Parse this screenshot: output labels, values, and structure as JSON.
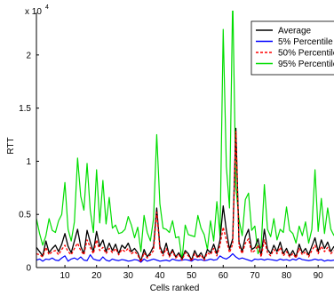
{
  "chart_data": {
    "type": "line",
    "xlabel": "Cells ranked",
    "ylabel": "RTT",
    "y_multiplier_label": "x 10",
    "y_multiplier_exponent": "4",
    "xlim": [
      1,
      95
    ],
    "ylim": [
      0,
      24000
    ],
    "xticks": [
      10,
      20,
      30,
      40,
      50,
      60,
      70,
      80,
      90
    ],
    "yticks": [
      0,
      5000,
      10000,
      15000,
      20000
    ],
    "ytick_labels": [
      "0",
      "0.5",
      "1",
      "1.5",
      "2"
    ],
    "legend_position": "top-right",
    "grid": false,
    "x": [
      1,
      2,
      3,
      4,
      5,
      6,
      7,
      8,
      9,
      10,
      11,
      12,
      13,
      14,
      15,
      16,
      17,
      18,
      19,
      20,
      21,
      22,
      23,
      24,
      25,
      26,
      27,
      28,
      29,
      30,
      31,
      32,
      33,
      34,
      35,
      36,
      37,
      38,
      39,
      40,
      41,
      42,
      43,
      44,
      45,
      46,
      47,
      48,
      49,
      50,
      51,
      52,
      53,
      54,
      55,
      56,
      57,
      58,
      59,
      60,
      61,
      62,
      63,
      64,
      65,
      66,
      67,
      68,
      69,
      70,
      71,
      72,
      73,
      74,
      75,
      76,
      77,
      78,
      79,
      80,
      81,
      82,
      83,
      84,
      85,
      86,
      87,
      88,
      89,
      90,
      91,
      92,
      93,
      94,
      95
    ],
    "series": [
      {
        "name": "Average",
        "color": "#000000",
        "dash": "solid",
        "values": [
          1900,
          1500,
          1100,
          2500,
          1400,
          1800,
          2100,
          1500,
          2200,
          3200,
          2000,
          1400,
          2500,
          3600,
          2000,
          1300,
          3500,
          2400,
          1500,
          3400,
          2000,
          2600,
          1500,
          2300,
          1600,
          2200,
          1300,
          2100,
          1800,
          2300,
          1500,
          1800,
          1400,
          600,
          1700,
          1000,
          1400,
          2000,
          5600,
          2000,
          1300,
          2300,
          1100,
          1700,
          1000,
          1400,
          800,
          1600,
          1300,
          700,
          1600,
          1000,
          1400,
          800,
          1700,
          1400,
          2200,
          1300,
          2600,
          5800,
          3500,
          1700,
          2700,
          13100,
          2400,
          1500,
          2900,
          3600,
          1700,
          1900,
          2700,
          1100,
          3600,
          1700,
          1300,
          2100,
          1500,
          2400,
          1300,
          1800,
          1100,
          1600,
          1000,
          2200,
          1400,
          1800,
          1200,
          2000,
          2800,
          1500,
          2600,
          1800,
          2400,
          1500,
          2000
        ]
      },
      {
        "name": "5% Percentile",
        "color": "#0000ff",
        "dash": "solid",
        "values": [
          700,
          800,
          600,
          800,
          750,
          900,
          700,
          650,
          900,
          1100,
          600,
          800,
          900,
          750,
          1000,
          700,
          650,
          1200,
          800,
          700,
          650,
          1000,
          700,
          600,
          800,
          700,
          650,
          750,
          700,
          600,
          650,
          750,
          700,
          500,
          800,
          600,
          700,
          800,
          700,
          600,
          650,
          700,
          600,
          800,
          700,
          650,
          700,
          750,
          700,
          600,
          800,
          700,
          750,
          650,
          700,
          800,
          700,
          750,
          1100,
          900,
          800,
          1000,
          1300,
          1000,
          800,
          900,
          800,
          700,
          600,
          800,
          750,
          800,
          700,
          800,
          750,
          700,
          650,
          800,
          700,
          750,
          650,
          800,
          700,
          900,
          750,
          700,
          650,
          700,
          800,
          700,
          750,
          600,
          700,
          650,
          700
        ]
      },
      {
        "name": "50% Percentile",
        "color": "#ff0000",
        "dash": "dashed",
        "values": [
          1300,
          1200,
          1000,
          1900,
          1200,
          1500,
          1600,
          1200,
          1700,
          2100,
          1500,
          1200,
          1800,
          2300,
          1600,
          1200,
          2600,
          1900,
          1300,
          2600,
          1600,
          1900,
          1300,
          1800,
          1400,
          1800,
          1200,
          1700,
          1500,
          1800,
          1300,
          1500,
          1200,
          500,
          1400,
          900,
          1200,
          1600,
          5200,
          1700,
          1100,
          1800,
          1000,
          1500,
          900,
          1200,
          700,
          1400,
          1100,
          600,
          1300,
          900,
          1200,
          700,
          1400,
          1200,
          1800,
          1100,
          2100,
          3800,
          2600,
          1400,
          2200,
          12800,
          2000,
          1300,
          2300,
          2700,
          1400,
          1600,
          2100,
          1000,
          2600,
          1400,
          1100,
          1700,
          1300,
          1900,
          1100,
          1500,
          1000,
          1300,
          900,
          1800,
          1200,
          1500,
          1000,
          1600,
          2100,
          1300,
          2000,
          1500,
          1900,
          1300,
          1600
        ]
      },
      {
        "name": "95% Percentile",
        "color": "#00dd00",
        "dash": "solid",
        "values": [
          4600,
          3200,
          2100,
          3000,
          4600,
          3500,
          3300,
          4400,
          5000,
          8000,
          3600,
          2500,
          4300,
          10300,
          6700,
          5400,
          9800,
          5400,
          3300,
          9200,
          4200,
          8200,
          4100,
          6600,
          3700,
          4000,
          3200,
          3300,
          3600,
          4800,
          4000,
          2800,
          3800,
          1500,
          4900,
          3300,
          2500,
          4600,
          12500,
          6000,
          3700,
          3600,
          3300,
          4400,
          2800,
          2900,
          700,
          4000,
          3100,
          3000,
          2900,
          4900,
          3700,
          3100,
          1700,
          4400,
          2500,
          6200,
          3000,
          22400,
          9500,
          5600,
          25500,
          7600,
          4500,
          3000,
          6400,
          7000,
          3500,
          3900,
          1300,
          2000,
          7800,
          3600,
          2900,
          4600,
          2600,
          3600,
          3300,
          5700,
          3500,
          3200,
          2300,
          3900,
          3000,
          4300,
          2300,
          3600,
          9200,
          3400,
          6500,
          3200,
          5600,
          3600,
          3000
        ]
      }
    ]
  }
}
